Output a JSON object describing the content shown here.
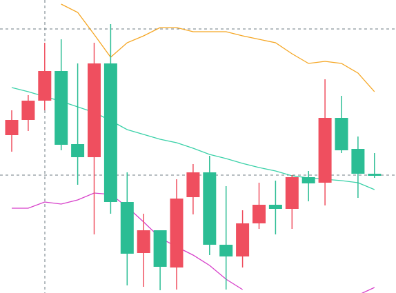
{
  "chart_data": {
    "type": "candlestick",
    "categories": [
      null,
      null,
      null,
      null,
      null,
      null,
      null,
      null,
      null,
      null,
      null,
      null,
      null,
      null,
      null,
      null,
      null,
      null,
      null,
      null,
      null,
      null,
      null
    ],
    "open": [
      251,
      279,
      322,
      215,
      197,
      333,
      132,
      57,
      91,
      38,
      137,
      175,
      70,
      53,
      101,
      128,
      122,
      168,
      159,
      254,
      207,
      173,
      170
    ],
    "high": [
      265,
      287,
      363,
      368,
      333,
      363,
      390,
      175,
      115,
      91,
      165,
      187,
      199,
      155,
      120,
      160,
      163,
      171,
      177,
      310,
      286,
      227,
      203
    ],
    "low": [
      205,
      235,
      265,
      207,
      157,
      85,
      115,
      11,
      9,
      4,
      5,
      114,
      55,
      5,
      37,
      93,
      85,
      93,
      133,
      127,
      203,
      138,
      167
    ],
    "close": [
      229,
      251,
      279,
      322,
      216,
      197,
      333,
      132,
      58,
      91,
      37,
      139,
      175,
      70,
      53,
      101,
      128,
      122,
      168,
      160,
      254,
      209,
      173
    ],
    "up_color": "#2bbd94",
    "down_color": "#ef4f5f",
    "lines": [
      {
        "color": "#f5a623",
        "values": [
          null,
          null,
          null,
          419,
          407,
          375,
          342,
          363,
          373,
          385,
          385,
          379,
          379,
          379,
          373,
          368,
          363,
          347,
          333,
          336,
          333,
          319,
          292
        ]
      },
      {
        "color": "#3ad1a8",
        "values": [
          298,
          292,
          285,
          278,
          270,
          262,
          250,
          237,
          230,
          223,
          218,
          210,
          201,
          195,
          188,
          182,
          177,
          170,
          167,
          165,
          163,
          160,
          150
        ]
      },
      {
        "color": "#d63ec9",
        "values": [
          123,
          123,
          132,
          129,
          135,
          145,
          143,
          125,
          103,
          80,
          67,
          55,
          40,
          20,
          5,
          null,
          null,
          null,
          null,
          null,
          null,
          -3,
          8
        ]
      }
    ],
    "ylim": [
      0,
      425
    ]
  }
}
